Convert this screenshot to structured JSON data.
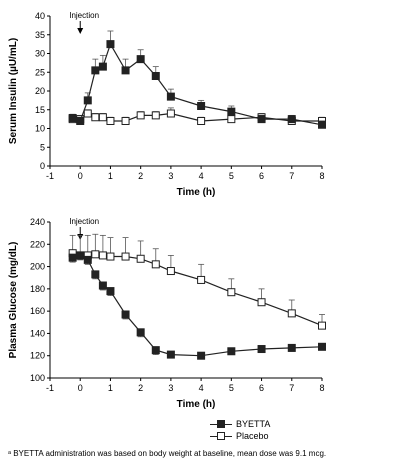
{
  "footnote": "ᵃ BYETTA  administration was based on body weight at baseline, mean dose was 9.1 mcg.",
  "legend": {
    "entries": [
      {
        "label": "BYETTA",
        "marker": "filled-square"
      },
      {
        "label": "Placebo",
        "marker": "open-square"
      }
    ]
  },
  "chart_data": [
    {
      "type": "line",
      "title": "",
      "xlabel": "Time (h)",
      "ylabel": "Serum Insulin (µU/mL)",
      "xlim": [
        -1,
        8
      ],
      "ylim": [
        0,
        40
      ],
      "xticks": [
        -1,
        0,
        1,
        2,
        3,
        4,
        5,
        6,
        7,
        8
      ],
      "yticks": [
        0,
        5,
        10,
        15,
        20,
        25,
        30,
        35,
        40
      ],
      "annotation": {
        "text": "Injection",
        "x": 0
      },
      "series": [
        {
          "name": "BYETTA",
          "marker": "filled-square",
          "x": [
            -0.25,
            0,
            0.25,
            0.5,
            0.75,
            1,
            1.5,
            2,
            2.5,
            3,
            4,
            5,
            6,
            7,
            8
          ],
          "y": [
            12.8,
            12.0,
            17.5,
            25.5,
            26.5,
            32.5,
            25.5,
            28.5,
            24.0,
            18.5,
            16.0,
            14.5,
            12.5,
            12.5,
            11.0
          ],
          "err": [
            1.0,
            1.0,
            2.0,
            3.0,
            3.0,
            3.5,
            3.0,
            2.5,
            2.5,
            2.0,
            1.5,
            1.5,
            1.0,
            1.0,
            1.0
          ]
        },
        {
          "name": "Placebo",
          "marker": "open-square",
          "x": [
            -0.25,
            0,
            0.25,
            0.5,
            0.75,
            1,
            1.5,
            2,
            2.5,
            3,
            4,
            5,
            6,
            7,
            8
          ],
          "y": [
            12.5,
            12.5,
            14.0,
            13.0,
            13.0,
            12.0,
            12.0,
            13.5,
            13.5,
            14.0,
            12.0,
            12.5,
            13.0,
            12.0,
            12.0
          ],
          "err": [
            1.0,
            1.0,
            1.0,
            1.0,
            1.0,
            1.0,
            1.0,
            1.0,
            1.0,
            1.5,
            1.0,
            1.0,
            1.0,
            1.0,
            1.0
          ]
        }
      ]
    },
    {
      "type": "line",
      "title": "",
      "xlabel": "Time (h)",
      "ylabel": "Plasma Glucose (mg/dL)",
      "xlim": [
        -1,
        8
      ],
      "ylim": [
        100,
        240
      ],
      "xticks": [
        -1,
        0,
        1,
        2,
        3,
        4,
        5,
        6,
        7,
        8
      ],
      "yticks": [
        100,
        120,
        140,
        160,
        180,
        200,
        220,
        240
      ],
      "annotation": {
        "text": "Injection",
        "x": 0
      },
      "series": [
        {
          "name": "BYETTA",
          "marker": "filled-square",
          "x": [
            -0.25,
            0,
            0.25,
            0.5,
            0.75,
            1,
            1.5,
            2,
            2.5,
            3,
            4,
            5,
            6,
            7,
            8
          ],
          "y": [
            208,
            210,
            206,
            193,
            183,
            178,
            157,
            141,
            125,
            121,
            120,
            124,
            126,
            127,
            128
          ],
          "err": [
            4,
            4,
            4,
            4,
            4,
            4,
            4,
            4,
            4,
            3,
            3,
            3,
            3,
            3,
            3
          ]
        },
        {
          "name": "Placebo",
          "marker": "open-square",
          "x": [
            -0.25,
            0,
            0.25,
            0.5,
            0.75,
            1,
            1.5,
            2,
            2.5,
            3,
            4,
            5,
            6,
            7,
            8
          ],
          "y": [
            212,
            210,
            210,
            211,
            210,
            209,
            209,
            207,
            202,
            196,
            188,
            177,
            168,
            158,
            147
          ],
          "err": [
            16,
            18,
            18,
            18,
            18,
            17,
            17,
            16,
            14,
            14,
            14,
            12,
            12,
            12,
            10
          ]
        }
      ]
    }
  ]
}
